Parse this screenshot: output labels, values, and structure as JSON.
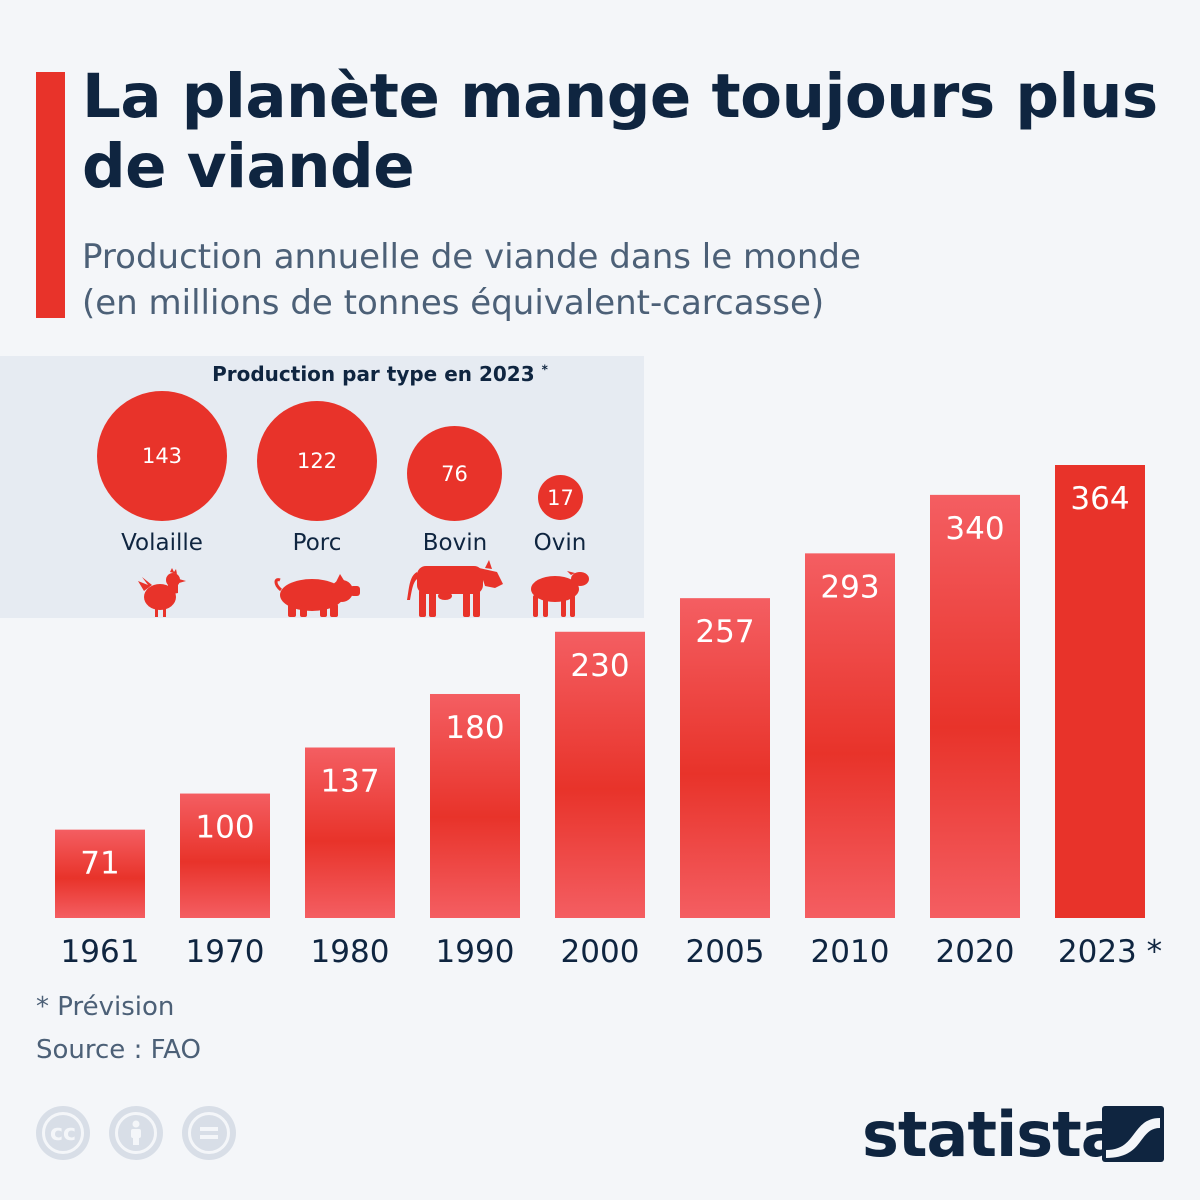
{
  "title": "La planète mange toujours plus de viande",
  "subtitle_line1": "Production annuelle de viande dans le monde",
  "subtitle_line2": "(en millions de tonnes équivalent-carcasse)",
  "inset": {
    "title": "Production par type en 2023",
    "title_mark": "*",
    "types": [
      {
        "label": "Volaille",
        "value": 143,
        "icon": "chicken-icon"
      },
      {
        "label": "Porc",
        "value": 122,
        "icon": "pig-icon"
      },
      {
        "label": "Bovin",
        "value": 76,
        "icon": "cow-icon"
      },
      {
        "label": "Ovin",
        "value": 17,
        "icon": "sheep-icon"
      }
    ]
  },
  "chart_data": {
    "type": "bar",
    "categories": [
      "1961",
      "1970",
      "1980",
      "1990",
      "2000",
      "2005",
      "2010",
      "2020",
      "2023 *"
    ],
    "values": [
      71,
      100,
      137,
      180,
      230,
      257,
      293,
      340,
      364
    ],
    "title": "La planète mange toujours plus de viande",
    "ylabel": "millions de tonnes équivalent-carcasse",
    "ylim": [
      0,
      364
    ],
    "highlight_index": 8
  },
  "footnotes": {
    "forecast": "* Prévision",
    "source": "Source : FAO"
  },
  "brand": "statista",
  "colors": {
    "accent": "#e8332a",
    "bar_light": "#f45e62",
    "title": "#0f2540",
    "subtitle": "#4c6077",
    "background": "#f4f6f9",
    "inset_bg": "#e6ebf2"
  }
}
